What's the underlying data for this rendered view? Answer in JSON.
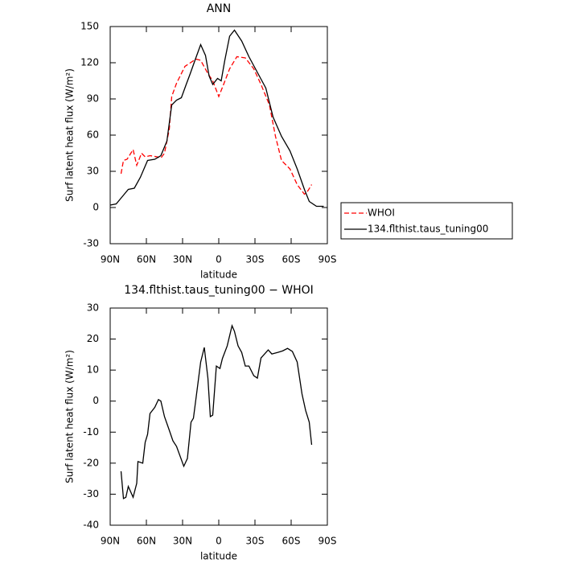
{
  "chart_data": [
    {
      "type": "line",
      "title": "ANN",
      "x_label": "latitude",
      "y_label": "Surf latent heat flux (W/m²)",
      "xlim": [
        90,
        -90
      ],
      "xticks": [
        {
          "value": 90,
          "label": "90N"
        },
        {
          "value": 60,
          "label": "60N"
        },
        {
          "value": 30,
          "label": "30N"
        },
        0,
        {
          "value": -30,
          "label": "30S"
        },
        {
          "value": -60,
          "label": "60S"
        },
        {
          "value": -90,
          "label": "90S"
        }
      ],
      "ylim": [
        -30,
        150
      ],
      "yticks": [
        -30,
        0,
        30,
        60,
        90,
        120,
        150
      ],
      "legend": "right",
      "series": [
        {
          "name": "WHOI",
          "color": "#ff0000",
          "line_style": "dashed",
          "x": [
            81,
            79,
            76,
            71,
            68,
            64,
            61,
            57,
            51,
            48,
            45,
            41,
            39,
            35,
            28,
            19,
            15,
            9,
            5,
            0,
            -4,
            -9,
            -15,
            -22,
            -29,
            -35,
            -42,
            -47,
            -52,
            -59,
            -65,
            -71,
            -74,
            -77
          ],
          "values": [
            28,
            39,
            40,
            48,
            35,
            45,
            42,
            43,
            42,
            41,
            45,
            65,
            92,
            103,
            117,
            123,
            122,
            111,
            105,
            92,
            102,
            115,
            125,
            124,
            115,
            102,
            85,
            59,
            39,
            32,
            19,
            11,
            14,
            19
          ]
        },
        {
          "name": "134.flthist.taus_tuning00",
          "color": "#000000",
          "line_style": "solid",
          "x": [
            90,
            85,
            80,
            75,
            70,
            65,
            59,
            53,
            48,
            43,
            39,
            35,
            31,
            27,
            24,
            19,
            15,
            11,
            8,
            5,
            1,
            -2,
            -5,
            -9,
            -13,
            -19,
            -25,
            -32,
            -39,
            -45,
            -52,
            -59,
            -65,
            -71,
            -75,
            -81,
            -87
          ],
          "values": [
            2,
            3,
            9,
            15,
            16,
            25,
            39,
            40,
            43,
            55,
            85,
            89,
            91,
            102,
            110,
            124,
            135,
            126,
            109,
            102,
            107,
            105,
            122,
            142,
            147,
            138,
            125,
            112,
            99,
            75,
            59,
            47,
            32,
            15,
            5,
            1,
            1
          ]
        }
      ]
    },
    {
      "type": "line",
      "title": "134.flthist.taus_tuning00 − WHOI",
      "x_label": "latitude",
      "y_label": "Surf latent heat flux (W/m²)",
      "xlim": [
        90,
        -90
      ],
      "xticks": [
        {
          "value": 90,
          "label": "90N"
        },
        {
          "value": 60,
          "label": "60N"
        },
        {
          "value": 30,
          "label": "30N"
        },
        0,
        {
          "value": -30,
          "label": "30S"
        },
        {
          "value": -60,
          "label": "60S"
        },
        {
          "value": -90,
          "label": "90S"
        }
      ],
      "ylim": [
        -40,
        30
      ],
      "yticks": [
        -40,
        -30,
        -20,
        -10,
        0,
        10,
        20,
        30
      ],
      "series": [
        {
          "color": "#000000",
          "line_style": "solid",
          "x": [
            81,
            79,
            77,
            75,
            71,
            68,
            67,
            63,
            61,
            59,
            57,
            53,
            50,
            48,
            45,
            41,
            38,
            35,
            29,
            26,
            23,
            21,
            18,
            15,
            12,
            9,
            7,
            5,
            2,
            -1,
            -3,
            -7,
            -11,
            -13,
            -16,
            -19,
            -22,
            -25,
            -29,
            -32,
            -35,
            -41,
            -44,
            -49,
            -53,
            -57,
            -61,
            -65,
            -69,
            -72,
            -75,
            -77
          ],
          "values": [
            -22.6,
            -31.4,
            -31,
            -27.5,
            -31,
            -26.5,
            -19.5,
            -20,
            -13.3,
            -10.7,
            -4,
            -2,
            0.5,
            0,
            -5,
            -9.4,
            -12.8,
            -14.6,
            -21,
            -18.5,
            -6.8,
            -5.5,
            3.5,
            12.6,
            17.3,
            7.4,
            -5,
            -4.5,
            11.3,
            10.5,
            13.7,
            17.8,
            24.3,
            22.5,
            17.8,
            15.7,
            11.3,
            11.3,
            8.2,
            7.4,
            13.9,
            16.5,
            15.2,
            15.7,
            16.2,
            17,
            16,
            12.6,
            2.3,
            -3,
            -6.8,
            -14.1
          ]
        }
      ]
    }
  ]
}
